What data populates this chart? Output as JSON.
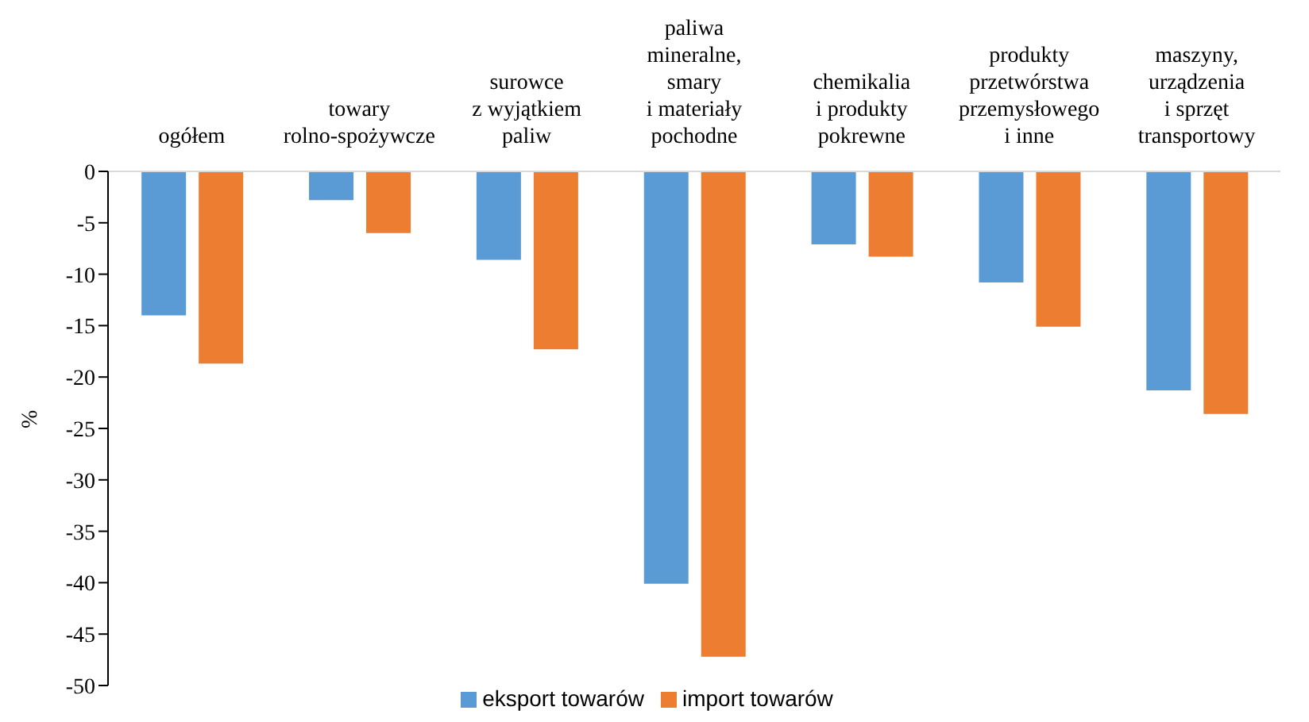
{
  "chart_data": {
    "type": "bar",
    "ylabel": "%",
    "categories": [
      "ogółem",
      "towary\nrolno-spożywcze",
      "surowce\nz wyjątkiem\npaliw",
      "paliwa\nmineralne,\nsmary\ni materiały\npochodne",
      "chemikalia\ni produkty\npokrewne",
      "produkty\nprzetwórstwa\nprzemysłowego\ni inne",
      "maszyny,\nurządzenia\ni sprzęt\ntransportowy"
    ],
    "series": [
      {
        "name": "eksport towarów",
        "color": "#5b9bd5",
        "values": [
          -14.0,
          -2.8,
          -8.6,
          -40.1,
          -7.1,
          -10.8,
          -21.3
        ]
      },
      {
        "name": "import towarów",
        "color": "#ed7d31",
        "values": [
          -18.7,
          -6.0,
          -17.3,
          -47.2,
          -8.3,
          -15.1,
          -23.6
        ]
      }
    ],
    "ylim": [
      -50,
      0
    ],
    "yticks": [
      -50,
      -45,
      -40,
      -35,
      -30,
      -25,
      -20,
      -15,
      -10,
      -5,
      0
    ],
    "legend": "bottom"
  }
}
